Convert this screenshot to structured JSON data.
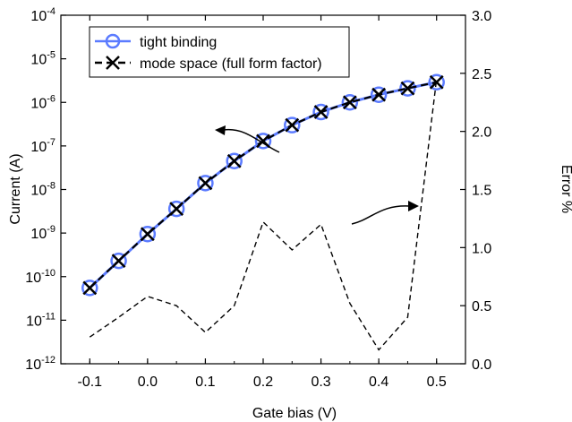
{
  "chart_data": {
    "type": "line",
    "x": [
      -0.1,
      -0.05,
      0.0,
      0.05,
      0.1,
      0.15,
      0.2,
      0.25,
      0.3,
      0.35,
      0.4,
      0.45,
      0.5
    ],
    "xlabel": "Gate bias (V)",
    "xlim": [
      -0.15,
      0.55
    ],
    "xticks": [
      "-0.1",
      "0.0",
      "0.1",
      "0.2",
      "0.3",
      "0.4",
      "0.5"
    ],
    "ylabel_left": "Current (A)",
    "ylim_left_log10": [
      -12,
      -4
    ],
    "ytick_left_base": "10",
    "ytick_left_exponents": [
      "-12",
      "-11",
      "-10",
      "-9",
      "-8",
      "-7",
      "-6",
      "-5",
      "-4"
    ],
    "ylabel_right": "Error %",
    "ylim_right": [
      0,
      3
    ],
    "yticks_right": [
      "0.0",
      "0.5",
      "1.0",
      "1.5",
      "2.0",
      "2.5",
      "3.0"
    ],
    "log_scale_left": true,
    "grid": false,
    "legend_position": "top-left",
    "series": [
      {
        "name": "tight binding",
        "axis": "left",
        "color": "#5b7bff",
        "marker": "circle",
        "values": [
          5.5e-11,
          2.3e-10,
          9.5e-10,
          3.6e-09,
          1.4e-08,
          4.5e-08,
          1.3e-07,
          3e-07,
          6e-07,
          1e-06,
          1.5e-06,
          2.1e-06,
          2.9e-06
        ]
      },
      {
        "name": "mode space (full form factor)",
        "axis": "left",
        "color": "#000000",
        "marker": "x",
        "line": "dashed",
        "values": [
          5.5e-11,
          2.3e-10,
          9.5e-10,
          3.6e-09,
          1.4e-08,
          4.5e-08,
          1.3e-07,
          3e-07,
          6e-07,
          1e-06,
          1.5e-06,
          2.1e-06,
          2.9e-06
        ]
      },
      {
        "axis": "right",
        "color": "#000000",
        "line": "dashed",
        "values": [
          0.23,
          0.4,
          0.58,
          0.5,
          0.27,
          0.5,
          1.22,
          0.98,
          1.2,
          0.52,
          0.12,
          0.4,
          2.45
        ]
      }
    ],
    "annotations": [
      "arrow-to-left-axis",
      "arrow-to-right-axis"
    ]
  }
}
